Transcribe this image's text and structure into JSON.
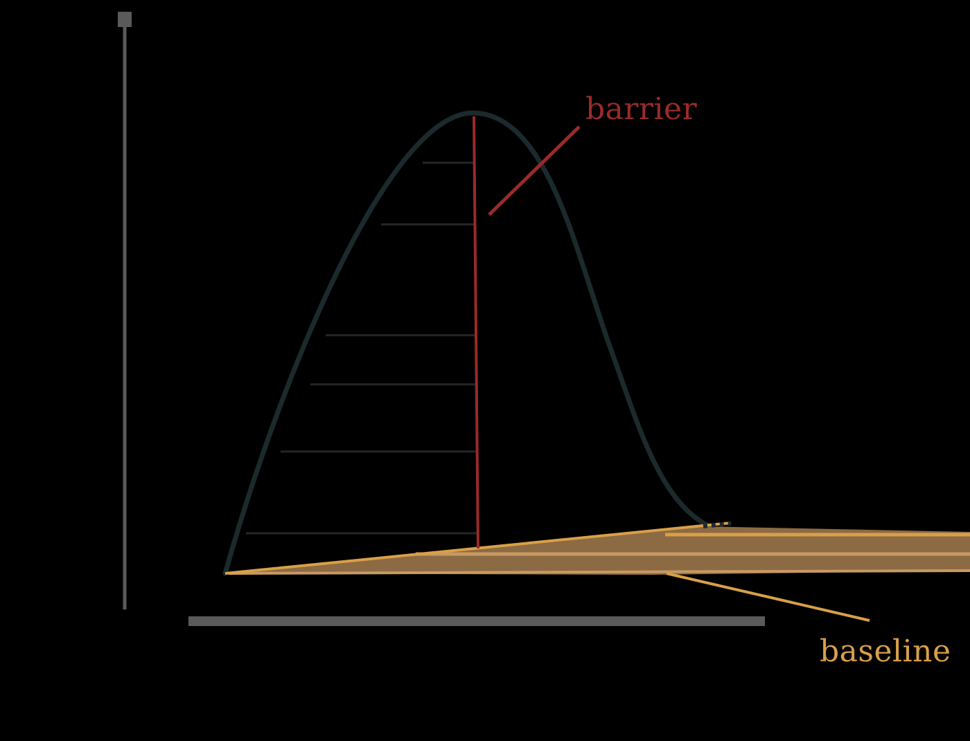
{
  "diagram": {
    "annotations": {
      "barrier": {
        "text": "barrier",
        "color": "#9b2a2a"
      },
      "baseline": {
        "text": "baseline",
        "color": "#d9a048"
      }
    },
    "colors": {
      "background": "#000000",
      "axis": "#5a5a5a",
      "curve": "#1b2a2c",
      "hatch": "#2a2a2a",
      "baseline_band": "#c79a62"
    },
    "icons": {
      "y_axis_arrow": "arrow-up-icon"
    }
  }
}
